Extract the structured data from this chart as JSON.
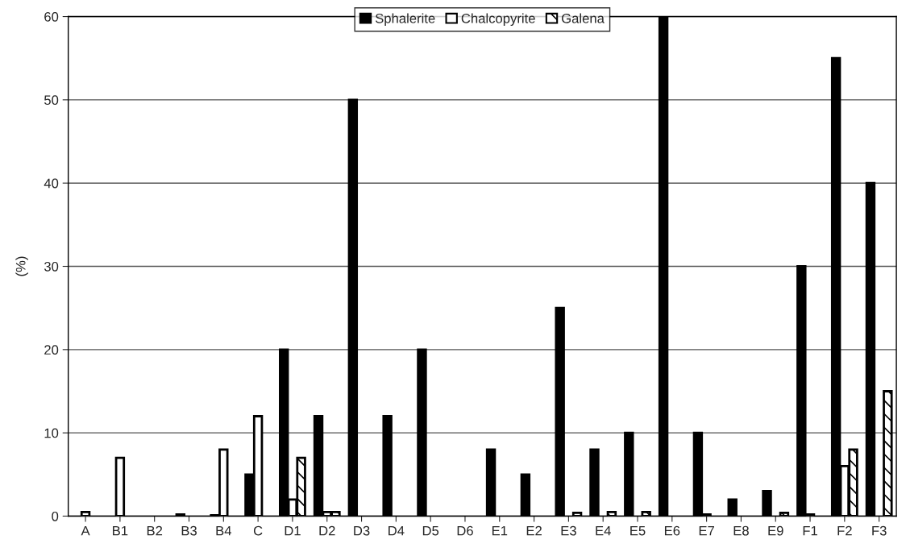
{
  "chart_data": {
    "type": "bar",
    "ylabel": "(%)",
    "categories": [
      "A",
      "B1",
      "B2",
      "B3",
      "B4",
      "C",
      "D1",
      "D2",
      "D3",
      "D4",
      "D5",
      "D6",
      "E1",
      "E2",
      "E3",
      "E4",
      "E5",
      "E6",
      "E7",
      "E8",
      "E9",
      "F1",
      "F2",
      "F3"
    ],
    "series": [
      {
        "name": "Sphalerite",
        "color": "#000000",
        "values": [
          null,
          null,
          null,
          0.2,
          0.1,
          5,
          20,
          12,
          50,
          12,
          20,
          null,
          8,
          5,
          25,
          8,
          10,
          60,
          10,
          2,
          3,
          30,
          55,
          40
        ]
      },
      {
        "name": "Chalcopyrite",
        "color": "#ffffff",
        "values": [
          0.5,
          7,
          null,
          null,
          8,
          12,
          2,
          0.5,
          null,
          null,
          null,
          null,
          null,
          null,
          null,
          null,
          null,
          null,
          0.2,
          null,
          null,
          0.2,
          6,
          null
        ]
      },
      {
        "name": "Galena",
        "color": "#ffffff",
        "values": [
          null,
          null,
          null,
          null,
          null,
          null,
          7,
          0.5,
          null,
          null,
          null,
          null,
          null,
          null,
          0.4,
          0.5,
          0.5,
          null,
          null,
          null,
          0.4,
          null,
          8,
          15
        ]
      }
    ],
    "ylim": [
      0,
      60
    ],
    "yticks": [
      0,
      10,
      20,
      30,
      40,
      50,
      60
    ],
    "grid": "y",
    "legend": "top"
  }
}
